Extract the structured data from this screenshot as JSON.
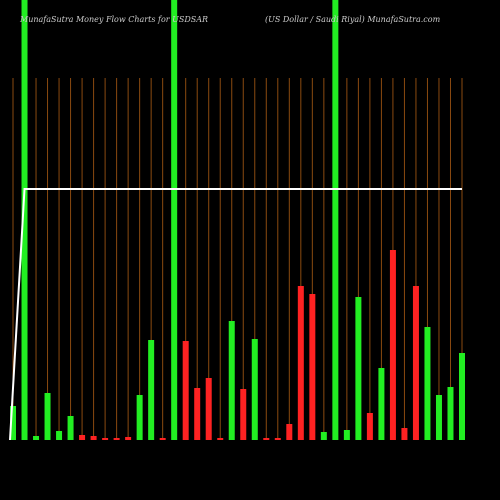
{
  "chart_data": {
    "type": "bar",
    "title": "MunafaSutra  Money Flow  Charts for USDSAR",
    "subtitle": "(US Dollar / Saudi Riyal) MunafaSutra.com",
    "categories": [
      null,
      null,
      null,
      null,
      null,
      null,
      null,
      null,
      null,
      null,
      null,
      null,
      null,
      null,
      null,
      null,
      null,
      null,
      null,
      null,
      null,
      null,
      null,
      null,
      null,
      null,
      null,
      null,
      null,
      null,
      null,
      null,
      null,
      null,
      null,
      null,
      null,
      null,
      null,
      null
    ],
    "values": [
      34,
      440,
      4,
      47,
      9,
      24,
      5,
      4,
      2,
      2,
      3,
      45,
      100,
      2,
      440,
      99,
      52,
      62,
      2,
      119,
      51,
      101,
      2,
      2,
      16,
      154,
      146,
      8,
      440,
      10,
      143,
      27,
      72,
      190,
      12,
      154,
      113,
      45,
      53,
      87
    ],
    "colors": [
      "#22ee22",
      "#22ee22",
      "#22ee22",
      "#22ee22",
      "#22ee22",
      "#22ee22",
      "#ff2222",
      "#ff2222",
      "#ff2222",
      "#ff2222",
      "#ff2222",
      "#22ee22",
      "#22ee22",
      "#ff2222",
      "#22ee22",
      "#ff2222",
      "#ff2222",
      "#ff2222",
      "#ff2222",
      "#22ee22",
      "#ff2222",
      "#22ee22",
      "#ff2222",
      "#ff2222",
      "#ff2222",
      "#ff2222",
      "#ff2222",
      "#22ee22",
      "#22ee22",
      "#22ee22",
      "#22ee22",
      "#ff2222",
      "#22ee22",
      "#ff2222",
      "#ff2222",
      "#ff2222",
      "#22ee22",
      "#22ee22",
      "#22ee22",
      "#22ee22"
    ],
    "line": {
      "color": "#ffffff",
      "values": [
        0,
        251,
        251,
        251,
        251,
        251,
        251,
        251,
        251,
        251,
        251,
        251,
        251,
        251,
        251,
        251,
        251,
        251,
        251,
        251,
        251,
        251,
        251,
        251,
        251,
        251,
        251,
        251,
        251,
        251,
        251,
        251,
        251,
        251,
        251,
        251,
        251,
        251,
        251,
        251
      ]
    },
    "ylim": [
      0,
      440
    ],
    "grid": true,
    "grid_color": "#8a4a10"
  }
}
